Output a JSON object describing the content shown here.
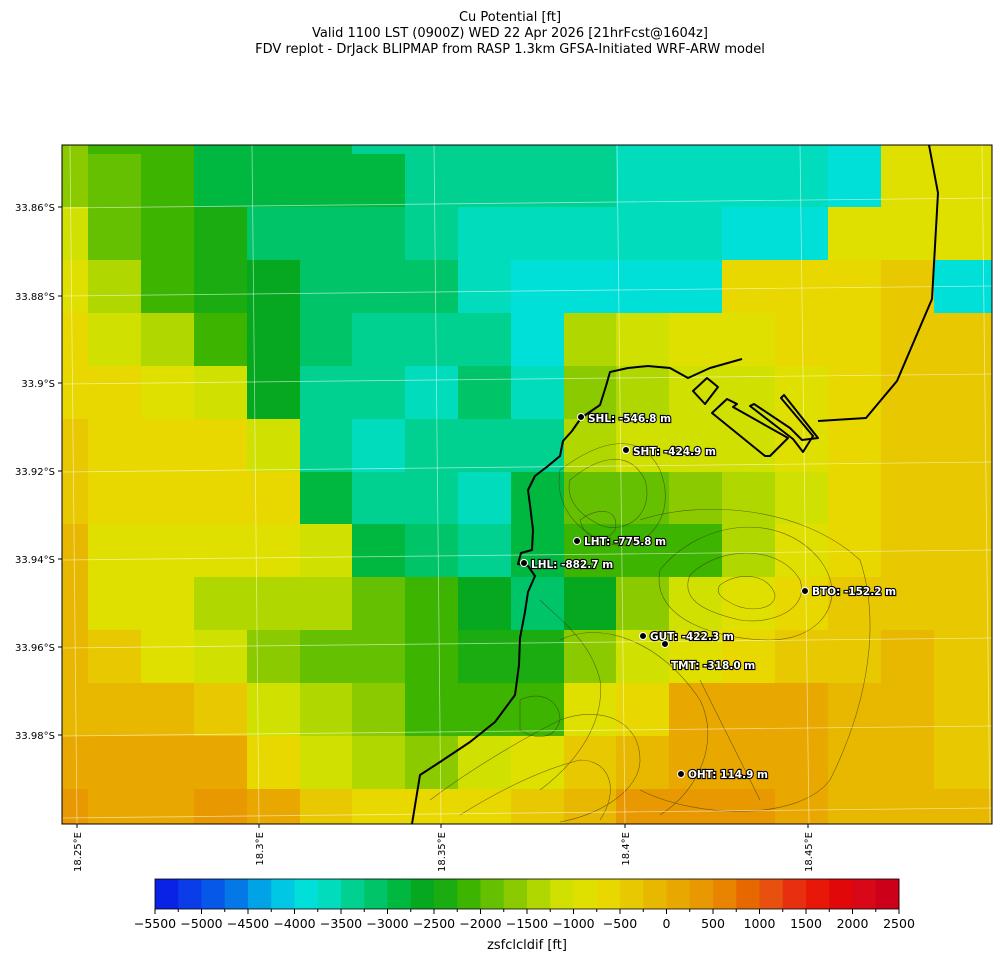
{
  "title": {
    "line1": "Cu Potential [ft]",
    "line2": "Valid 1100 LST (0900Z) WED 22 Apr 2026 [21hrFcst@1604z]",
    "line3": "FDV replot - DrJack BLIPMAP from RASP 1.3km GFSA-Initiated WRF-ARW model"
  },
  "axes": {
    "lat_ticks": [
      "33.86°S",
      "33.88°S",
      "33.9°S",
      "33.92°S",
      "33.94°S",
      "33.96°S",
      "33.98°S"
    ],
    "lon_ticks": [
      "18.25°E",
      "18.3°E",
      "18.35°E",
      "18.4°E",
      "18.45°E"
    ]
  },
  "stations": [
    {
      "label": "SHL: -546.8 m"
    },
    {
      "label": "SHT: -424.9 m"
    },
    {
      "label": "LHT: -775.8 m"
    },
    {
      "label": "LHL: -882.7 m"
    },
    {
      "label": "BTO: -152.2 m"
    },
    {
      "label": "GUT: -422.3 m"
    },
    {
      "label": "TMT: -318.0 m"
    },
    {
      "label": "OHT: 114.9 m"
    }
  ],
  "colorbar": {
    "label": "zsfclcldif [ft]",
    "min": -5500,
    "max": 2500,
    "step": 250,
    "tick_labels": [
      "−5500",
      "−5000",
      "−4500",
      "−4000",
      "−3500",
      "−3000",
      "−2500",
      "−2000",
      "−1500",
      "−1000",
      "−500",
      "0",
      "500",
      "1000",
      "1500",
      "2000",
      "2500"
    ],
    "colors": [
      "#0a22e6",
      "#0a3ce8",
      "#0658e8",
      "#0478e6",
      "#00a4e6",
      "#00c8e4",
      "#00e0d8",
      "#00dcbc",
      "#00d090",
      "#00c468",
      "#00b840",
      "#06a820",
      "#1aac10",
      "#3cb400",
      "#64c000",
      "#8cca00",
      "#b0d800",
      "#d0e000",
      "#e0e000",
      "#e8d800",
      "#e8c800",
      "#e8b800",
      "#e8a800",
      "#e89800",
      "#e88400",
      "#e86800",
      "#e85010",
      "#e83010",
      "#e81808",
      "#e00808",
      "#d80818",
      "#cc0018"
    ]
  },
  "chart_data": {
    "type": "heatmap",
    "variable": "zsfclcldif [ft]",
    "grid_ft": [
      [
        -1625,
        -2125,
        -2125,
        -2875,
        -2875,
        -2875,
        -3375,
        -3375,
        -3375,
        -3375,
        -3375,
        -3625,
        -3625,
        -3625,
        -3625,
        -3875,
        -875,
        -875
      ],
      [
        -1625,
        -1875,
        -2125,
        -2875,
        -2875,
        -2875,
        -2875,
        -3375,
        -3375,
        -3375,
        -3375,
        -3625,
        -3625,
        -3625,
        -3625,
        -3875,
        -875,
        -875
      ],
      [
        -1125,
        -1875,
        -2125,
        -2375,
        -3125,
        -3125,
        -3125,
        -3375,
        -3625,
        -3625,
        -3625,
        -3625,
        -3625,
        -3875,
        -3875,
        -875,
        -875,
        -875
      ],
      [
        -875,
        -1375,
        -2125,
        -2375,
        -2625,
        -3125,
        -3125,
        -3125,
        -3625,
        -3875,
        -3875,
        -3875,
        -3875,
        -625,
        -625,
        -625,
        -375,
        -3875
      ],
      [
        -625,
        -1125,
        -1375,
        -2125,
        -2625,
        -3125,
        -3375,
        -3375,
        -3375,
        -3875,
        -1375,
        -1125,
        -875,
        -875,
        -625,
        -625,
        -375,
        -375
      ],
      [
        -625,
        -625,
        -875,
        -1125,
        -2625,
        -3375,
        -3375,
        -3625,
        -3125,
        -3625,
        -1625,
        -1375,
        -1125,
        -1125,
        -875,
        -625,
        -375,
        -375
      ],
      [
        -375,
        -625,
        -625,
        -625,
        -1125,
        -3375,
        -3625,
        -3375,
        -3375,
        -3375,
        -1375,
        -1125,
        -1125,
        -1125,
        -875,
        -625,
        -375,
        -375
      ],
      [
        -375,
        -625,
        -625,
        -625,
        -625,
        -2875,
        -3375,
        -3375,
        -3625,
        -2875,
        -1875,
        -1875,
        -1625,
        -1375,
        -1125,
        -625,
        -375,
        -375
      ],
      [
        -125,
        -875,
        -875,
        -875,
        -875,
        -1125,
        -2875,
        -3125,
        -3375,
        -2875,
        -2125,
        -2125,
        -2125,
        -1375,
        -875,
        -625,
        -375,
        -375
      ],
      [
        -125,
        -875,
        -875,
        -1375,
        -1375,
        -1375,
        -1875,
        -2125,
        -2625,
        -3125,
        -2625,
        -1625,
        -1125,
        -875,
        -625,
        -375,
        -375,
        -375
      ],
      [
        -125,
        -375,
        -875,
        -1125,
        -1625,
        -1875,
        -1875,
        -2125,
        -2375,
        -2375,
        -1625,
        -1125,
        -875,
        -625,
        -375,
        -375,
        -125,
        -375
      ],
      [
        -125,
        -125,
        -125,
        -375,
        -1125,
        -1375,
        -1625,
        -2125,
        -2125,
        -2125,
        -875,
        -625,
        125,
        125,
        125,
        -125,
        -125,
        -375
      ],
      [
        125,
        125,
        125,
        125,
        -625,
        -1125,
        -1375,
        -1625,
        -1125,
        -875,
        -375,
        -125,
        125,
        125,
        125,
        -125,
        -125,
        -375
      ],
      [
        375,
        125,
        125,
        375,
        125,
        -375,
        -625,
        -625,
        -625,
        -375,
        -125,
        375,
        375,
        375,
        125,
        -125,
        -125,
        -125
      ]
    ]
  }
}
